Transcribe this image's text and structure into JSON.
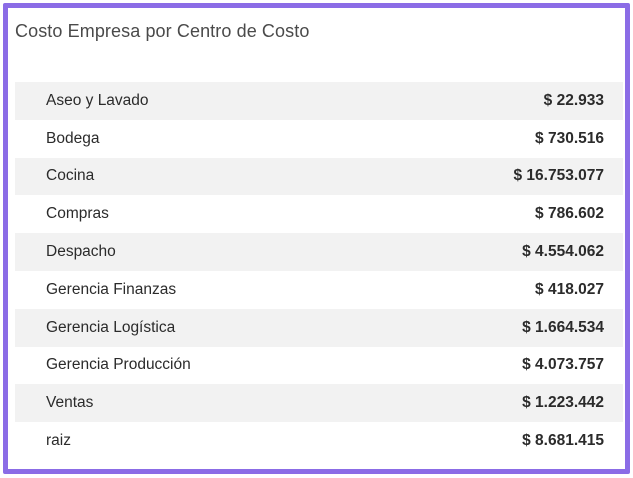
{
  "widget": {
    "title": "Costo Empresa por Centro de Costo"
  },
  "rows": [
    {
      "label": "Aseo y Lavado",
      "value": "$ 22.933"
    },
    {
      "label": "Bodega",
      "value": "$ 730.516"
    },
    {
      "label": "Cocina",
      "value": "$ 16.753.077"
    },
    {
      "label": "Compras",
      "value": "$ 786.602"
    },
    {
      "label": "Despacho",
      "value": "$ 4.554.062"
    },
    {
      "label": "Gerencia Finanzas",
      "value": "$ 418.027"
    },
    {
      "label": "Gerencia Logística",
      "value": "$ 1.664.534"
    },
    {
      "label": "Gerencia Producción",
      "value": "$ 4.073.757"
    },
    {
      "label": "Ventas",
      "value": "$ 1.223.442"
    },
    {
      "label": "raiz",
      "value": "$ 8.681.415"
    }
  ],
  "colors": {
    "frame_border": "#8b6ce6",
    "row_stripe": "#f2f2f2"
  }
}
